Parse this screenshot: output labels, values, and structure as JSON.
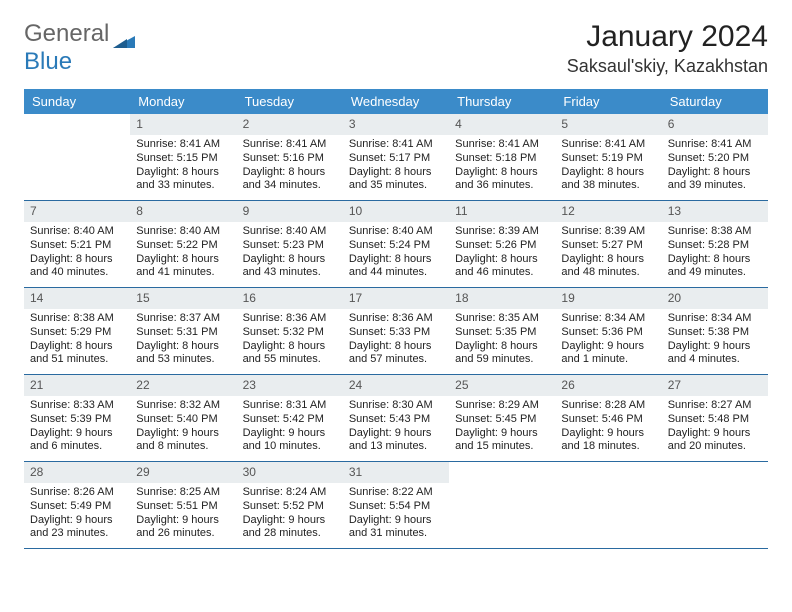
{
  "brand": {
    "general": "General",
    "blue": "Blue"
  },
  "title": "January 2024",
  "location": "Saksaul'skiy, Kazakhstan",
  "colors": {
    "header_bg": "#3b8bc9",
    "header_text": "#ffffff",
    "daynum_bg": "#e9edef",
    "week_border": "#2a6aa0",
    "brand_blue": "#2a7ab8"
  },
  "weekdays": [
    "Sunday",
    "Monday",
    "Tuesday",
    "Wednesday",
    "Thursday",
    "Friday",
    "Saturday"
  ],
  "weeks": [
    [
      null,
      {
        "n": "1",
        "sr": "Sunrise: 8:41 AM",
        "ss": "Sunset: 5:15 PM",
        "dl1": "Daylight: 8 hours",
        "dl2": "and 33 minutes."
      },
      {
        "n": "2",
        "sr": "Sunrise: 8:41 AM",
        "ss": "Sunset: 5:16 PM",
        "dl1": "Daylight: 8 hours",
        "dl2": "and 34 minutes."
      },
      {
        "n": "3",
        "sr": "Sunrise: 8:41 AM",
        "ss": "Sunset: 5:17 PM",
        "dl1": "Daylight: 8 hours",
        "dl2": "and 35 minutes."
      },
      {
        "n": "4",
        "sr": "Sunrise: 8:41 AM",
        "ss": "Sunset: 5:18 PM",
        "dl1": "Daylight: 8 hours",
        "dl2": "and 36 minutes."
      },
      {
        "n": "5",
        "sr": "Sunrise: 8:41 AM",
        "ss": "Sunset: 5:19 PM",
        "dl1": "Daylight: 8 hours",
        "dl2": "and 38 minutes."
      },
      {
        "n": "6",
        "sr": "Sunrise: 8:41 AM",
        "ss": "Sunset: 5:20 PM",
        "dl1": "Daylight: 8 hours",
        "dl2": "and 39 minutes."
      }
    ],
    [
      {
        "n": "7",
        "sr": "Sunrise: 8:40 AM",
        "ss": "Sunset: 5:21 PM",
        "dl1": "Daylight: 8 hours",
        "dl2": "and 40 minutes."
      },
      {
        "n": "8",
        "sr": "Sunrise: 8:40 AM",
        "ss": "Sunset: 5:22 PM",
        "dl1": "Daylight: 8 hours",
        "dl2": "and 41 minutes."
      },
      {
        "n": "9",
        "sr": "Sunrise: 8:40 AM",
        "ss": "Sunset: 5:23 PM",
        "dl1": "Daylight: 8 hours",
        "dl2": "and 43 minutes."
      },
      {
        "n": "10",
        "sr": "Sunrise: 8:40 AM",
        "ss": "Sunset: 5:24 PM",
        "dl1": "Daylight: 8 hours",
        "dl2": "and 44 minutes."
      },
      {
        "n": "11",
        "sr": "Sunrise: 8:39 AM",
        "ss": "Sunset: 5:26 PM",
        "dl1": "Daylight: 8 hours",
        "dl2": "and 46 minutes."
      },
      {
        "n": "12",
        "sr": "Sunrise: 8:39 AM",
        "ss": "Sunset: 5:27 PM",
        "dl1": "Daylight: 8 hours",
        "dl2": "and 48 minutes."
      },
      {
        "n": "13",
        "sr": "Sunrise: 8:38 AM",
        "ss": "Sunset: 5:28 PM",
        "dl1": "Daylight: 8 hours",
        "dl2": "and 49 minutes."
      }
    ],
    [
      {
        "n": "14",
        "sr": "Sunrise: 8:38 AM",
        "ss": "Sunset: 5:29 PM",
        "dl1": "Daylight: 8 hours",
        "dl2": "and 51 minutes."
      },
      {
        "n": "15",
        "sr": "Sunrise: 8:37 AM",
        "ss": "Sunset: 5:31 PM",
        "dl1": "Daylight: 8 hours",
        "dl2": "and 53 minutes."
      },
      {
        "n": "16",
        "sr": "Sunrise: 8:36 AM",
        "ss": "Sunset: 5:32 PM",
        "dl1": "Daylight: 8 hours",
        "dl2": "and 55 minutes."
      },
      {
        "n": "17",
        "sr": "Sunrise: 8:36 AM",
        "ss": "Sunset: 5:33 PM",
        "dl1": "Daylight: 8 hours",
        "dl2": "and 57 minutes."
      },
      {
        "n": "18",
        "sr": "Sunrise: 8:35 AM",
        "ss": "Sunset: 5:35 PM",
        "dl1": "Daylight: 8 hours",
        "dl2": "and 59 minutes."
      },
      {
        "n": "19",
        "sr": "Sunrise: 8:34 AM",
        "ss": "Sunset: 5:36 PM",
        "dl1": "Daylight: 9 hours",
        "dl2": "and 1 minute."
      },
      {
        "n": "20",
        "sr": "Sunrise: 8:34 AM",
        "ss": "Sunset: 5:38 PM",
        "dl1": "Daylight: 9 hours",
        "dl2": "and 4 minutes."
      }
    ],
    [
      {
        "n": "21",
        "sr": "Sunrise: 8:33 AM",
        "ss": "Sunset: 5:39 PM",
        "dl1": "Daylight: 9 hours",
        "dl2": "and 6 minutes."
      },
      {
        "n": "22",
        "sr": "Sunrise: 8:32 AM",
        "ss": "Sunset: 5:40 PM",
        "dl1": "Daylight: 9 hours",
        "dl2": "and 8 minutes."
      },
      {
        "n": "23",
        "sr": "Sunrise: 8:31 AM",
        "ss": "Sunset: 5:42 PM",
        "dl1": "Daylight: 9 hours",
        "dl2": "and 10 minutes."
      },
      {
        "n": "24",
        "sr": "Sunrise: 8:30 AM",
        "ss": "Sunset: 5:43 PM",
        "dl1": "Daylight: 9 hours",
        "dl2": "and 13 minutes."
      },
      {
        "n": "25",
        "sr": "Sunrise: 8:29 AM",
        "ss": "Sunset: 5:45 PM",
        "dl1": "Daylight: 9 hours",
        "dl2": "and 15 minutes."
      },
      {
        "n": "26",
        "sr": "Sunrise: 8:28 AM",
        "ss": "Sunset: 5:46 PM",
        "dl1": "Daylight: 9 hours",
        "dl2": "and 18 minutes."
      },
      {
        "n": "27",
        "sr": "Sunrise: 8:27 AM",
        "ss": "Sunset: 5:48 PM",
        "dl1": "Daylight: 9 hours",
        "dl2": "and 20 minutes."
      }
    ],
    [
      {
        "n": "28",
        "sr": "Sunrise: 8:26 AM",
        "ss": "Sunset: 5:49 PM",
        "dl1": "Daylight: 9 hours",
        "dl2": "and 23 minutes."
      },
      {
        "n": "29",
        "sr": "Sunrise: 8:25 AM",
        "ss": "Sunset: 5:51 PM",
        "dl1": "Daylight: 9 hours",
        "dl2": "and 26 minutes."
      },
      {
        "n": "30",
        "sr": "Sunrise: 8:24 AM",
        "ss": "Sunset: 5:52 PM",
        "dl1": "Daylight: 9 hours",
        "dl2": "and 28 minutes."
      },
      {
        "n": "31",
        "sr": "Sunrise: 8:22 AM",
        "ss": "Sunset: 5:54 PM",
        "dl1": "Daylight: 9 hours",
        "dl2": "and 31 minutes."
      },
      null,
      null,
      null
    ]
  ]
}
